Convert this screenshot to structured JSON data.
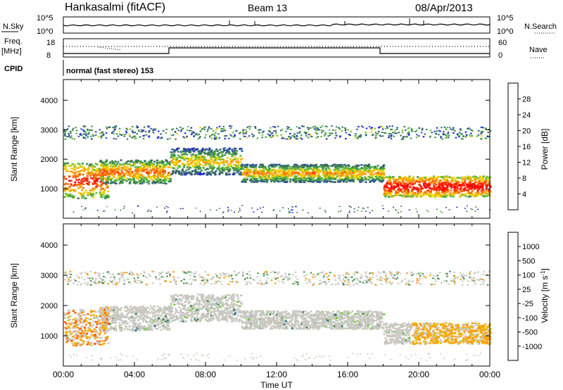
{
  "header": {
    "station": "Hankasalmi (fitACF)",
    "beam": "Beam 13",
    "date": "08/Apr/2013"
  },
  "panels": {
    "nsky_label": "N.Sky",
    "nsearch_label": "N.Search",
    "nsky_ticks": [
      "10^5",
      "10^0"
    ],
    "nsearch_ticks": [
      "10^5",
      "10^0"
    ],
    "freq_label_1": "Freq.",
    "freq_label_2": "[MHz]",
    "freq_ticks": [
      "18",
      "8"
    ],
    "nave_label": "Nave",
    "nave_ticks": [
      "60",
      "0"
    ],
    "cpid_label": "CPID",
    "cpid_text": "normal (fast stereo) 153"
  },
  "colors": {
    "power_scale": [
      "#1a1adc",
      "#2d4fa8",
      "#3a6e5a",
      "#3f8f4a",
      "#5fba3a",
      "#f0d000",
      "#f7a400",
      "#f36a00",
      "#ff2a00",
      "#ff0000"
    ],
    "velocity_scale": [
      "#ff0000",
      "#ff5a00",
      "#ff9a00",
      "#f2b200",
      "#c8c8c0",
      "#c8c8c0",
      "#6acb2e",
      "#3f8f4a",
      "#2e7a8c",
      "#1a4fb8"
    ]
  },
  "chart_data": [
    {
      "type": "heatmap",
      "title": "",
      "ylabel": "Slant Range [km]",
      "ylim": [
        0,
        4700
      ],
      "yticks": [
        "1000",
        "2000",
        "3000",
        "4000"
      ],
      "colorbar_label": "Power [dB]",
      "colorbar_ticks": [
        "4",
        "8",
        "12",
        "16",
        "20",
        "24",
        "28"
      ],
      "bands": [
        {
          "start": 0.0,
          "end": 2.5,
          "center": 1300,
          "width": 600,
          "level": 26
        },
        {
          "start": 2.0,
          "end": 6.0,
          "center": 1600,
          "width": 400,
          "level": 22
        },
        {
          "start": 6.0,
          "end": 10.0,
          "center": 1950,
          "width": 450,
          "level": 18
        },
        {
          "start": 10.0,
          "end": 18.0,
          "center": 1550,
          "width": 300,
          "level": 20
        },
        {
          "start": 18.0,
          "end": 24.0,
          "center": 1100,
          "width": 350,
          "level": 28
        }
      ]
    },
    {
      "type": "heatmap",
      "title": "",
      "ylabel": "Slant Range [km]",
      "xlabel": "Time UT",
      "ylim": [
        0,
        4700
      ],
      "yticks": [
        "1000",
        "2000",
        "3000",
        "4000"
      ],
      "xticks": [
        "00:00",
        "04:00",
        "08:00",
        "12:00",
        "16:00",
        "20:00",
        "00:00"
      ],
      "colorbar_label": "Velocity [m s^-1]",
      "colorbar_ticks": [
        "1000",
        "500",
        "100",
        "25",
        "-25",
        "-100",
        "-500",
        "-1000"
      ]
    }
  ]
}
